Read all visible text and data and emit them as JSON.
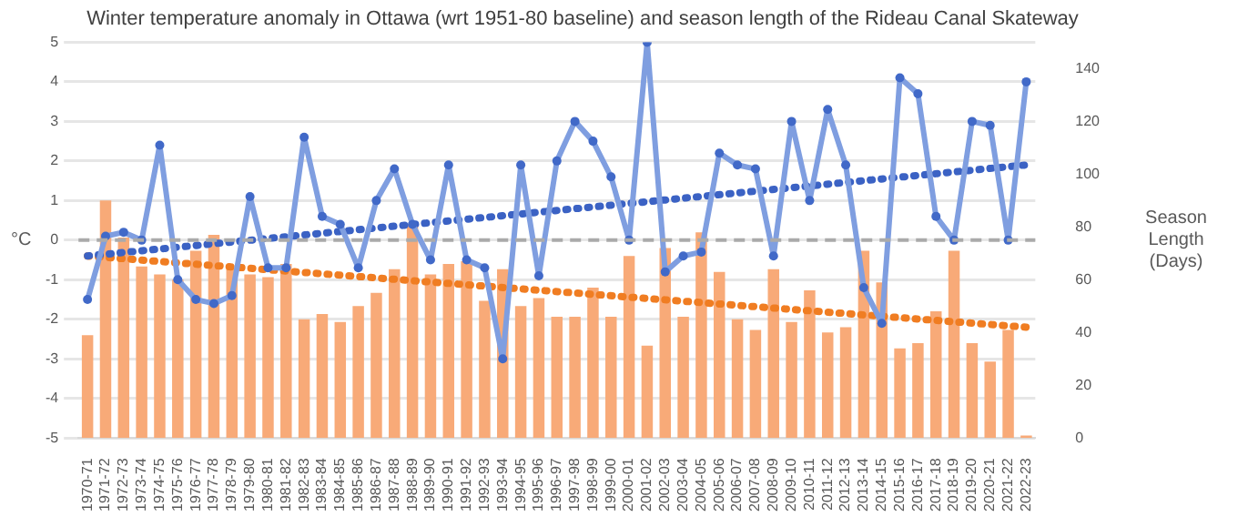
{
  "chart_data": {
    "type": "bar",
    "title": "Winter temperature anomaly in Ottawa (wrt 1951-80 baseline) and season length of the Rideau Canal Skateway",
    "ylabel": "°C",
    "y2label": "Season Length (Days)",
    "categories": [
      "1970-71",
      "1971-72",
      "1972-73",
      "1973-74",
      "1974-75",
      "1975-76",
      "1976-77",
      "1977-78",
      "1978-79",
      "1979-80",
      "1980-81",
      "1981-82",
      "1982-83",
      "1983-84",
      "1984-85",
      "1985-86",
      "1986-87",
      "1987-88",
      "1988-89",
      "1989-90",
      "1990-91",
      "1991-92",
      "1992-93",
      "1993-94",
      "1994-95",
      "1995-96",
      "1996-97",
      "1997-98",
      "1998-99",
      "1999-00",
      "2000-01",
      "2001-02",
      "2002-03",
      "2003-04",
      "2004-05",
      "2005-06",
      "2006-07",
      "2007-08",
      "2008-09",
      "2009-10",
      "2010-11",
      "2011-12",
      "2012-13",
      "2013-14",
      "2014-15",
      "2015-16",
      "2016-17",
      "2017-18",
      "2018-19",
      "2019-20",
      "2020-21",
      "2021-22",
      "2022-23"
    ],
    "series": [
      {
        "axis": "y2",
        "color": "#f8aa78",
        "values": [
          39,
          90,
          76,
          65,
          62,
          60,
          71,
          77,
          64,
          62,
          61,
          66,
          45,
          47,
          44,
          50,
          55,
          64,
          81,
          62,
          66,
          67,
          52,
          64,
          50,
          53,
          46,
          46,
          57,
          46,
          69,
          35,
          72,
          46,
          78,
          63,
          45,
          41,
          64,
          44,
          56,
          40,
          42,
          71,
          59,
          34,
          36,
          48,
          71,
          36,
          29,
          41,
          1
        ]
      },
      {
        "type": "line",
        "color": "#7f9ee0",
        "marker": "circle",
        "line_style": "solid",
        "values": [
          -1.5,
          0.1,
          0.2,
          0.0,
          2.4,
          -1.0,
          -1.5,
          -1.6,
          -1.4,
          1.1,
          -0.7,
          -0.7,
          2.6,
          0.6,
          0.4,
          -0.7,
          1.0,
          1.8,
          0.4,
          -0.5,
          1.9,
          -0.5,
          -0.7,
          -3.0,
          1.9,
          -0.9,
          2.0,
          3.0,
          2.5,
          1.6,
          0.0,
          5.0,
          -0.8,
          -0.4,
          -0.3,
          2.2,
          1.9,
          1.8,
          -0.4,
          3.0,
          1.0,
          3.3,
          1.9,
          -1.2,
          -2.1,
          4.1,
          3.7,
          0.6,
          0.0,
          3.0,
          2.9,
          0.0,
          4.0
        ]
      },
      {
        "type": "line",
        "color": "#3b62c4",
        "marker": "none",
        "line_style": "dotted",
        "values": [
          -0.4,
          null,
          null,
          null,
          null,
          null,
          null,
          null,
          null,
          null,
          null,
          null,
          null,
          null,
          null,
          null,
          null,
          null,
          null,
          null,
          null,
          null,
          null,
          null,
          null,
          null,
          null,
          null,
          null,
          null,
          null,
          null,
          null,
          null,
          null,
          null,
          null,
          null,
          null,
          null,
          null,
          null,
          null,
          null,
          null,
          null,
          null,
          null,
          null,
          null,
          null,
          null,
          1.9
        ]
      },
      {
        "type": "line",
        "axis": "y2",
        "color": "#f07d22",
        "marker": "none",
        "line_style": "dotted",
        "values": [
          69,
          null,
          null,
          null,
          null,
          null,
          null,
          null,
          null,
          null,
          null,
          null,
          null,
          null,
          null,
          null,
          null,
          null,
          null,
          null,
          null,
          null,
          null,
          null,
          null,
          null,
          null,
          null,
          null,
          null,
          null,
          null,
          null,
          null,
          null,
          null,
          null,
          null,
          null,
          null,
          null,
          null,
          null,
          null,
          null,
          null,
          null,
          null,
          null,
          null,
          null,
          null,
          42
        ]
      }
    ],
    "ylim": [
      -5,
      5
    ],
    "yticks": [
      -5,
      -4,
      -3,
      -2,
      -1,
      0,
      1,
      2,
      3,
      4,
      5
    ],
    "y2lim": [
      0,
      150
    ],
    "y2ticks": [
      0,
      20,
      40,
      60,
      80,
      100,
      120,
      140
    ],
    "grid": "y",
    "legend": false,
    "ref_lines": [
      {
        "axis": "y",
        "value": 0,
        "color": "#aaaaaa",
        "line_style": "dashed"
      }
    ]
  }
}
